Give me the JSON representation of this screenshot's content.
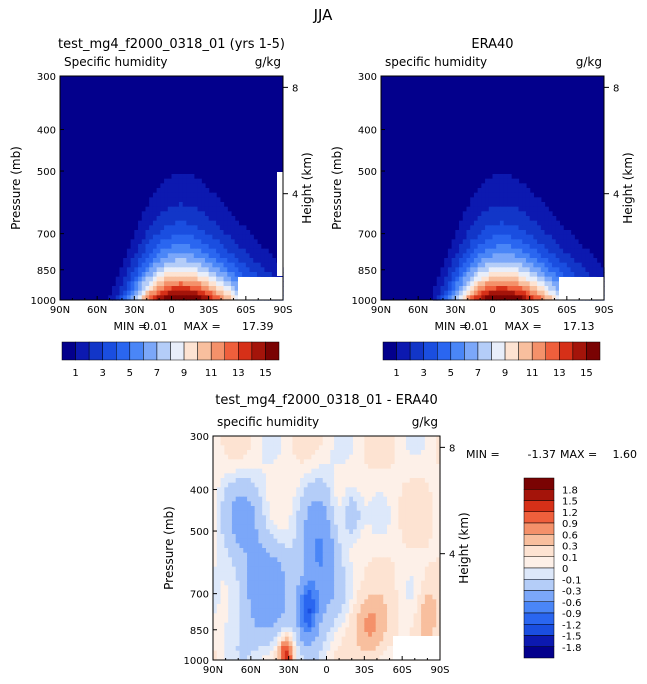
{
  "figure_title": "JJA",
  "chart_data": [
    {
      "type": "heatmap",
      "title": "test_mg4_f2000_0318_01 (yrs 1-5)",
      "variable": "Specific humidity",
      "units": "g/kg",
      "ylabel": "Pressure (mb)",
      "ylabel_right": "Height (km)",
      "x_ticks": [
        "90N",
        "60N",
        "30N",
        "0",
        "30S",
        "60S",
        "90S"
      ],
      "x_tick_values": [
        90,
        60,
        30,
        0,
        -30,
        -60,
        -90
      ],
      "y_ticks": [
        "300",
        "400",
        "500",
        "700",
        "850",
        "1000"
      ],
      "y_tick_values": [
        300,
        400,
        500,
        700,
        850,
        1000
      ],
      "y_right_ticks": [
        "8",
        "4"
      ],
      "y_right_tick_values": [
        8,
        4
      ],
      "xlim": [
        90,
        -90
      ],
      "ylim": [
        1000,
        300
      ],
      "y_scale": "log",
      "min_label": "MIN =",
      "min_value": "0.01",
      "max_label": "MAX =",
      "max_value": "17.39",
      "levels": [
        1,
        2,
        3,
        4,
        5,
        6,
        7,
        8,
        9,
        10,
        11,
        12,
        13,
        14,
        15
      ],
      "colorbar_labels": [
        "1",
        "3",
        "5",
        "7",
        "9",
        "11",
        "13",
        "15"
      ],
      "peak_value": 17.39,
      "peak_lat": -8,
      "peak_pressure": 1000
    },
    {
      "type": "heatmap",
      "title": "ERA40",
      "variable": "specific humidity",
      "units": "g/kg",
      "ylabel": "Pressure (mb)",
      "ylabel_right": "Height (km)",
      "x_ticks": [
        "90N",
        "60N",
        "30N",
        "0",
        "30S",
        "60S",
        "90S"
      ],
      "x_tick_values": [
        90,
        60,
        30,
        0,
        -30,
        -60,
        -90
      ],
      "y_ticks": [
        "300",
        "400",
        "500",
        "700",
        "850",
        "1000"
      ],
      "y_tick_values": [
        300,
        400,
        500,
        700,
        850,
        1000
      ],
      "y_right_ticks": [
        "8",
        "4"
      ],
      "y_right_tick_values": [
        8,
        4
      ],
      "xlim": [
        90,
        -90
      ],
      "ylim": [
        1000,
        300
      ],
      "y_scale": "log",
      "min_label": "MIN =",
      "min_value": "0.01",
      "max_label": "MAX =",
      "max_value": "17.13",
      "levels": [
        1,
        2,
        3,
        4,
        5,
        6,
        7,
        8,
        9,
        10,
        11,
        12,
        13,
        14,
        15
      ],
      "colorbar_labels": [
        "1",
        "3",
        "5",
        "7",
        "9",
        "11",
        "13",
        "15"
      ],
      "peak_value": 17.13,
      "peak_lat": -8,
      "peak_pressure": 1000
    },
    {
      "type": "heatmap",
      "title": "test_mg4_f2000_0318_01 - ERA40",
      "variable": "specific humidity",
      "units": "g/kg",
      "ylabel": "Pressure (mb)",
      "ylabel_right": "Height (km)",
      "x_ticks": [
        "90N",
        "60N",
        "30N",
        "0",
        "30S",
        "60S",
        "90S"
      ],
      "x_tick_values": [
        90,
        60,
        30,
        0,
        -30,
        -60,
        -90
      ],
      "y_ticks": [
        "300",
        "400",
        "500",
        "700",
        "850",
        "1000"
      ],
      "y_tick_values": [
        300,
        400,
        500,
        700,
        850,
        1000
      ],
      "y_right_ticks": [
        "8",
        "4"
      ],
      "y_right_tick_values": [
        8,
        4
      ],
      "xlim": [
        90,
        -90
      ],
      "ylim": [
        1000,
        300
      ],
      "y_scale": "log",
      "min_label": "MIN =",
      "min_value": "-1.37",
      "max_label": "MAX =",
      "max_value": "1.60",
      "levels": [
        -1.8,
        -1.5,
        -1.2,
        -0.9,
        -0.6,
        -0.3,
        -0.1,
        0,
        0.1,
        0.3,
        0.6,
        0.9,
        1.2,
        1.5,
        1.8
      ],
      "colorbar_labels": [
        "1.8",
        "1.5",
        "1.2",
        "0.9",
        "0.6",
        "0.3",
        "0.1",
        "0",
        "-0.1",
        "-0.3",
        "-0.6",
        "-0.9",
        "-1.2",
        "-1.5",
        "-1.8"
      ]
    }
  ],
  "colors": {
    "sequential": [
      "#03008c",
      "#0c19b0",
      "#1236c8",
      "#1a4ee0",
      "#2a66f0",
      "#4a86f7",
      "#7ba7f9",
      "#b4cdf8",
      "#e8eefa",
      "#fde3d2",
      "#f8bf9e",
      "#f4916a",
      "#ef5f3c",
      "#d63018",
      "#a4140a",
      "#7a0303"
    ],
    "diverging": [
      "#03008c",
      "#0c19b0",
      "#1a4ee0",
      "#2a66f0",
      "#4a86f7",
      "#7ba7f9",
      "#b4cdf8",
      "#dde8fa",
      "#fdf0e8",
      "#fde3d2",
      "#f8bf9e",
      "#f4916a",
      "#ef5f3c",
      "#d63018",
      "#a4140a",
      "#7a0303"
    ]
  }
}
